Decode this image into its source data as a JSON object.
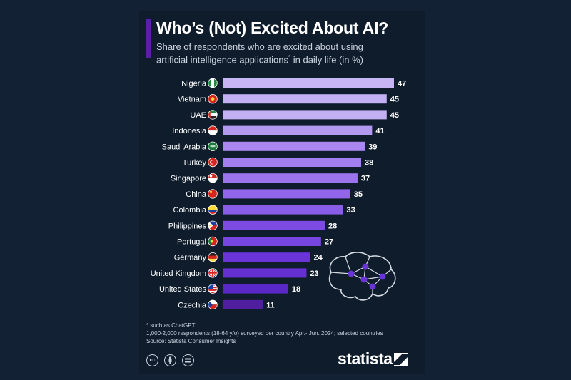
{
  "header": {
    "title": "Who’s (Not) Excited About AI?",
    "subtitle_line1": "Share of respondents who are excited about using",
    "subtitle_line2_a": "artificial intelligence applications",
    "subtitle_line2_sup": "*",
    "subtitle_line2_b": " in daily life (in %)"
  },
  "footer": {
    "note1": "* such as ChatGPT",
    "note2": "1,000-2,000 respondents (18-64 y/o) surveyed per country Apr.- Jun. 2024; selected countries",
    "source": "Source: Statista Consumer Insights",
    "brand": "statista",
    "license_icons": [
      "cc-icon",
      "attribution-icon",
      "no-derivatives-icon"
    ]
  },
  "chart_data": {
    "type": "bar",
    "orientation": "horizontal",
    "categories": [
      "Nigeria",
      "Vietnam",
      "UAE",
      "Indonesia",
      "Saudi Arabia",
      "Turkey",
      "Singapore",
      "China",
      "Colombia",
      "Philippines",
      "Portugal",
      "Germany",
      "United Kingdom",
      "United States",
      "Czechia"
    ],
    "values": [
      47,
      45,
      45,
      41,
      39,
      38,
      37,
      35,
      33,
      28,
      27,
      24,
      23,
      18,
      11
    ],
    "flag_icons": [
      "nigeria-flag-icon",
      "vietnam-flag-icon",
      "uae-flag-icon",
      "indonesia-flag-icon",
      "saudi-arabia-flag-icon",
      "turkey-flag-icon",
      "singapore-flag-icon",
      "china-flag-icon",
      "colombia-flag-icon",
      "philippines-flag-icon",
      "portugal-flag-icon",
      "germany-flag-icon",
      "united-kingdom-flag-icon",
      "united-states-flag-icon",
      "czechia-flag-icon"
    ],
    "bar_colors": [
      "#c7b5f3",
      "#c3b0f2",
      "#c3b0f2",
      "#b29af0",
      "#a987ef",
      "#a27eee",
      "#9c75ed",
      "#9266ea",
      "#8a5de8",
      "#7d4ae2",
      "#7745df",
      "#6a34d6",
      "#6530d2",
      "#5b28c8",
      "#4f1f9f"
    ],
    "xlim": [
      0,
      47
    ],
    "grid": false,
    "legend": "none"
  },
  "colors": {
    "background": "#122133",
    "card": "#0f1c2c",
    "title_accent": "#5a1fa8",
    "text": "#ffffff",
    "muted_text": "#c9d2dc"
  }
}
